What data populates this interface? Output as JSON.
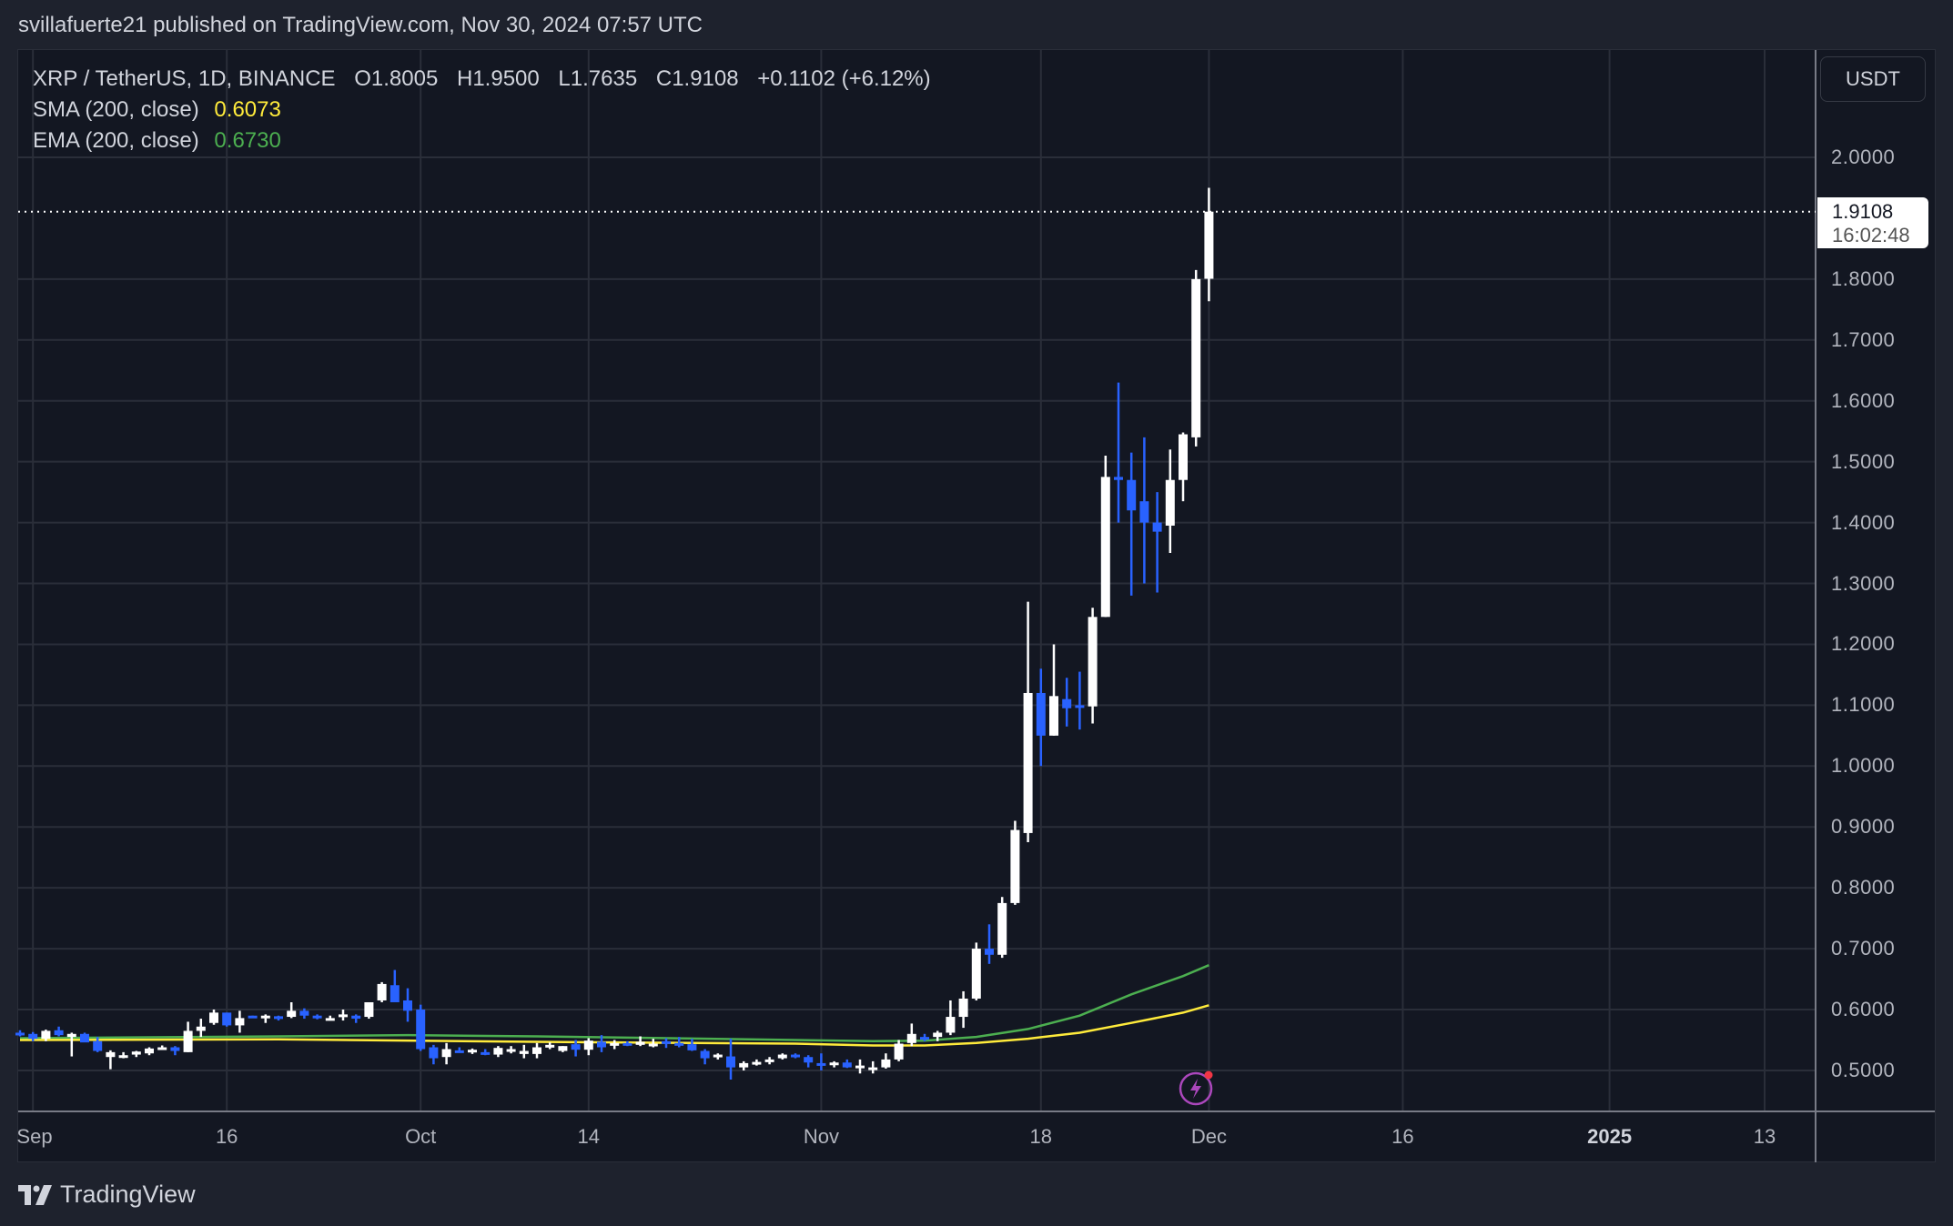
{
  "publish_line": "svillafuerte21 published on TradingView.com, Nov 30, 2024 07:57 UTC",
  "legend": {
    "symbol": "XRP / TetherUS, 1D, BINANCE",
    "open": "O1.8005",
    "high": "H1.9500",
    "low": "L1.7635",
    "close": "C1.9108",
    "change": "+0.1102 (+6.12%)",
    "sma_label": "SMA (200, close)",
    "sma_value": "0.6073",
    "ema_label": "EMA (200, close)",
    "ema_value": "0.6730"
  },
  "currency": "USDT",
  "last_price": {
    "value": "1.9108",
    "countdown": "16:02:48"
  },
  "footer_brand": "TradingView",
  "colors": {
    "up": "#ffffff",
    "down": "#2962ff",
    "sma": "#ffeb3b",
    "ema": "#4caf50",
    "grid": "#2a2e39",
    "bg": "#131722",
    "event_icon": "#ab47bc"
  },
  "chart_data": {
    "type": "candlestick",
    "title": "XRP / TetherUS, 1D, BINANCE",
    "xlabel": "",
    "ylabel": "USDT",
    "ylim": [
      0.43,
      2.18
    ],
    "grid": true,
    "y_ticks": [
      "2.0000",
      "1.8000",
      "1.7000",
      "1.6000",
      "1.5000",
      "1.4000",
      "1.3000",
      "1.2000",
      "1.1000",
      "1.0000",
      "0.9000",
      "0.8000",
      "0.7000",
      "0.6000",
      "0.5000"
    ],
    "x_ticks": [
      {
        "label": "Sep",
        "day": 1
      },
      {
        "label": "16",
        "day": 16
      },
      {
        "label": "Oct",
        "day": 31
      },
      {
        "label": "14",
        "day": 44
      },
      {
        "label": "Nov",
        "day": 62
      },
      {
        "label": "18",
        "day": 79
      },
      {
        "label": "Dec",
        "day": 92
      },
      {
        "label": "16",
        "day": 107
      },
      {
        "label": "2025",
        "day": 123,
        "bold": true
      },
      {
        "label": "13",
        "day": 135
      }
    ],
    "start_date": "2024-08-31",
    "candles": [
      [
        0.562,
        0.566,
        0.556,
        0.56
      ],
      [
        0.56,
        0.563,
        0.548,
        0.552
      ],
      [
        0.552,
        0.567,
        0.548,
        0.565
      ],
      [
        0.566,
        0.572,
        0.556,
        0.558
      ],
      [
        0.555,
        0.562,
        0.523,
        0.56
      ],
      [
        0.56,
        0.562,
        0.548,
        0.546
      ],
      [
        0.548,
        0.555,
        0.53,
        0.532
      ],
      [
        0.522,
        0.533,
        0.502,
        0.53
      ],
      [
        0.523,
        0.53,
        0.52,
        0.525
      ],
      [
        0.526,
        0.532,
        0.522,
        0.531
      ],
      [
        0.528,
        0.538,
        0.525,
        0.536
      ],
      [
        0.538,
        0.541,
        0.535,
        0.538
      ],
      [
        0.538,
        0.54,
        0.525,
        0.532
      ],
      [
        0.53,
        0.58,
        0.53,
        0.565
      ],
      [
        0.565,
        0.585,
        0.555,
        0.572
      ],
      [
        0.578,
        0.6,
        0.575,
        0.595
      ],
      [
        0.595,
        0.595,
        0.572,
        0.574
      ],
      [
        0.574,
        0.598,
        0.562,
        0.586
      ],
      [
        0.59,
        0.59,
        0.588,
        0.588
      ],
      [
        0.588,
        0.592,
        0.578,
        0.59
      ],
      [
        0.589,
        0.59,
        0.582,
        0.585
      ],
      [
        0.588,
        0.612,
        0.586,
        0.598
      ],
      [
        0.598,
        0.602,
        0.585,
        0.59
      ],
      [
        0.59,
        0.592,
        0.584,
        0.588
      ],
      [
        0.585,
        0.59,
        0.582,
        0.586
      ],
      [
        0.588,
        0.6,
        0.582,
        0.592
      ],
      [
        0.59,
        0.592,
        0.578,
        0.585
      ],
      [
        0.588,
        0.608,
        0.585,
        0.612
      ],
      [
        0.615,
        0.645,
        0.612,
        0.642
      ],
      [
        0.64,
        0.665,
        0.632,
        0.612
      ],
      [
        0.615,
        0.635,
        0.58,
        0.598
      ],
      [
        0.6,
        0.608,
        0.532,
        0.535
      ],
      [
        0.538,
        0.542,
        0.51,
        0.52
      ],
      [
        0.522,
        0.545,
        0.51,
        0.535
      ],
      [
        0.533,
        0.538,
        0.53,
        0.532
      ],
      [
        0.532,
        0.536,
        0.527,
        0.534
      ],
      [
        0.53,
        0.535,
        0.525,
        0.527
      ],
      [
        0.526,
        0.54,
        0.522,
        0.537
      ],
      [
        0.532,
        0.54,
        0.528,
        0.535
      ],
      [
        0.527,
        0.542,
        0.52,
        0.532
      ],
      [
        0.527,
        0.545,
        0.52,
        0.538
      ],
      [
        0.54,
        0.546,
        0.535,
        0.542
      ],
      [
        0.532,
        0.54,
        0.53,
        0.54
      ],
      [
        0.543,
        0.55,
        0.523,
        0.534
      ],
      [
        0.534,
        0.553,
        0.525,
        0.549
      ],
      [
        0.547,
        0.558,
        0.53,
        0.538
      ],
      [
        0.542,
        0.55,
        0.535,
        0.545
      ],
      [
        0.545,
        0.548,
        0.54,
        0.542
      ],
      [
        0.542,
        0.556,
        0.54,
        0.547
      ],
      [
        0.544,
        0.552,
        0.538,
        0.544
      ],
      [
        0.548,
        0.553,
        0.537,
        0.546
      ],
      [
        0.545,
        0.555,
        0.538,
        0.542
      ],
      [
        0.543,
        0.552,
        0.532,
        0.533
      ],
      [
        0.532,
        0.535,
        0.51,
        0.52
      ],
      [
        0.522,
        0.528,
        0.518,
        0.526
      ],
      [
        0.523,
        0.552,
        0.485,
        0.505
      ],
      [
        0.505,
        0.515,
        0.5,
        0.512
      ],
      [
        0.512,
        0.518,
        0.508,
        0.514
      ],
      [
        0.514,
        0.522,
        0.51,
        0.518
      ],
      [
        0.52,
        0.528,
        0.518,
        0.526
      ],
      [
        0.526,
        0.528,
        0.52,
        0.522
      ],
      [
        0.522,
        0.525,
        0.505,
        0.513
      ],
      [
        0.512,
        0.528,
        0.5,
        0.51
      ],
      [
        0.51,
        0.515,
        0.505,
        0.513
      ],
      [
        0.513,
        0.518,
        0.504,
        0.505
      ],
      [
        0.508,
        0.518,
        0.495,
        0.508
      ],
      [
        0.503,
        0.515,
        0.495,
        0.505
      ],
      [
        0.505,
        0.528,
        0.503,
        0.518
      ],
      [
        0.518,
        0.55,
        0.515,
        0.544
      ],
      [
        0.545,
        0.577,
        0.54,
        0.56
      ],
      [
        0.555,
        0.56,
        0.548,
        0.554
      ],
      [
        0.555,
        0.565,
        0.548,
        0.562
      ],
      [
        0.562,
        0.615,
        0.558,
        0.588
      ],
      [
        0.588,
        0.63,
        0.57,
        0.618
      ],
      [
        0.618,
        0.71,
        0.615,
        0.7
      ],
      [
        0.7,
        0.74,
        0.675,
        0.69
      ],
      [
        0.69,
        0.785,
        0.685,
        0.775
      ],
      [
        0.775,
        0.91,
        0.772,
        0.895
      ],
      [
        0.89,
        1.27,
        0.875,
        1.12
      ],
      [
        1.12,
        1.16,
        1.0,
        1.05
      ],
      [
        1.05,
        1.2,
        1.05,
        1.115
      ],
      [
        1.11,
        1.145,
        1.065,
        1.095
      ],
      [
        1.1,
        1.155,
        1.06,
        1.098
      ],
      [
        1.098,
        1.26,
        1.07,
        1.245
      ],
      [
        1.245,
        1.51,
        1.245,
        1.475
      ],
      [
        1.475,
        1.63,
        1.4,
        1.47
      ],
      [
        1.47,
        1.515,
        1.28,
        1.42
      ],
      [
        1.435,
        1.54,
        1.3,
        1.4
      ],
      [
        1.4,
        1.45,
        1.285,
        1.385
      ],
      [
        1.395,
        1.52,
        1.35,
        1.47
      ],
      [
        1.47,
        1.548,
        1.435,
        1.545
      ],
      [
        1.54,
        1.815,
        1.525,
        1.8
      ],
      [
        1.8005,
        1.95,
        1.7635,
        1.9108
      ]
    ],
    "sma_200": [
      [
        0,
        0.55
      ],
      [
        20,
        0.551
      ],
      [
        40,
        0.547
      ],
      [
        60,
        0.544
      ],
      [
        66,
        0.541
      ],
      [
        70,
        0.541
      ],
      [
        74,
        0.545
      ],
      [
        78,
        0.552
      ],
      [
        82,
        0.562
      ],
      [
        86,
        0.578
      ],
      [
        90,
        0.595
      ],
      [
        92,
        0.607
      ]
    ],
    "ema_200": [
      [
        0,
        0.553
      ],
      [
        20,
        0.556
      ],
      [
        30,
        0.558
      ],
      [
        40,
        0.556
      ],
      [
        60,
        0.55
      ],
      [
        66,
        0.548
      ],
      [
        70,
        0.549
      ],
      [
        74,
        0.555
      ],
      [
        78,
        0.568
      ],
      [
        82,
        0.59
      ],
      [
        86,
        0.625
      ],
      [
        90,
        0.655
      ],
      [
        92,
        0.673
      ]
    ]
  }
}
